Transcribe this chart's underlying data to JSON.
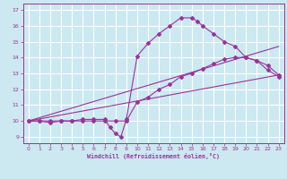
{
  "xlabel": "Windchill (Refroidissement éolien,°C)",
  "bg_color": "#cce8f0",
  "line_color": "#993399",
  "grid_color": "#ffffff",
  "xlim": [
    -0.5,
    23.5
  ],
  "ylim": [
    8.6,
    17.4
  ],
  "xticks": [
    0,
    1,
    2,
    3,
    4,
    5,
    6,
    7,
    8,
    9,
    10,
    11,
    12,
    13,
    14,
    15,
    16,
    17,
    18,
    19,
    20,
    21,
    22,
    23
  ],
  "yticks": [
    9,
    10,
    11,
    12,
    13,
    14,
    15,
    16,
    17
  ],
  "lines": [
    {
      "x": [
        0,
        1,
        2,
        3,
        4,
        5,
        6,
        7,
        7.5,
        8,
        8.5,
        9,
        10,
        11,
        12,
        13,
        14,
        15,
        15.5,
        16,
        17,
        18,
        19,
        20,
        21,
        22,
        23
      ],
      "y": [
        10,
        10,
        9.9,
        10,
        10,
        10.1,
        10.1,
        10.1,
        9.6,
        9.2,
        9.0,
        10.1,
        14.1,
        14.9,
        15.5,
        16.0,
        16.5,
        16.5,
        16.3,
        16.0,
        15.5,
        15.0,
        14.7,
        14.0,
        13.8,
        13.2,
        12.8
      ]
    },
    {
      "x": [
        0,
        1,
        2,
        3,
        4,
        5,
        6,
        7,
        8,
        9,
        10,
        11,
        12,
        13,
        14,
        15,
        16,
        17,
        18,
        19,
        20,
        21,
        22,
        23
      ],
      "y": [
        10,
        10,
        10,
        10,
        10,
        10,
        10,
        10,
        10,
        10,
        11.2,
        11.5,
        12.0,
        12.3,
        12.8,
        13.0,
        13.3,
        13.6,
        13.9,
        14.0,
        14.0,
        13.8,
        13.5,
        12.9
      ]
    },
    {
      "comment": "straight line 1 - from ~(0,10) to ~(23,14.7)",
      "x": [
        0,
        23
      ],
      "y": [
        10,
        14.7
      ]
    },
    {
      "comment": "straight line 2 - from ~(0,10) to ~(23,12.9)",
      "x": [
        0,
        23
      ],
      "y": [
        10,
        12.9
      ]
    }
  ]
}
